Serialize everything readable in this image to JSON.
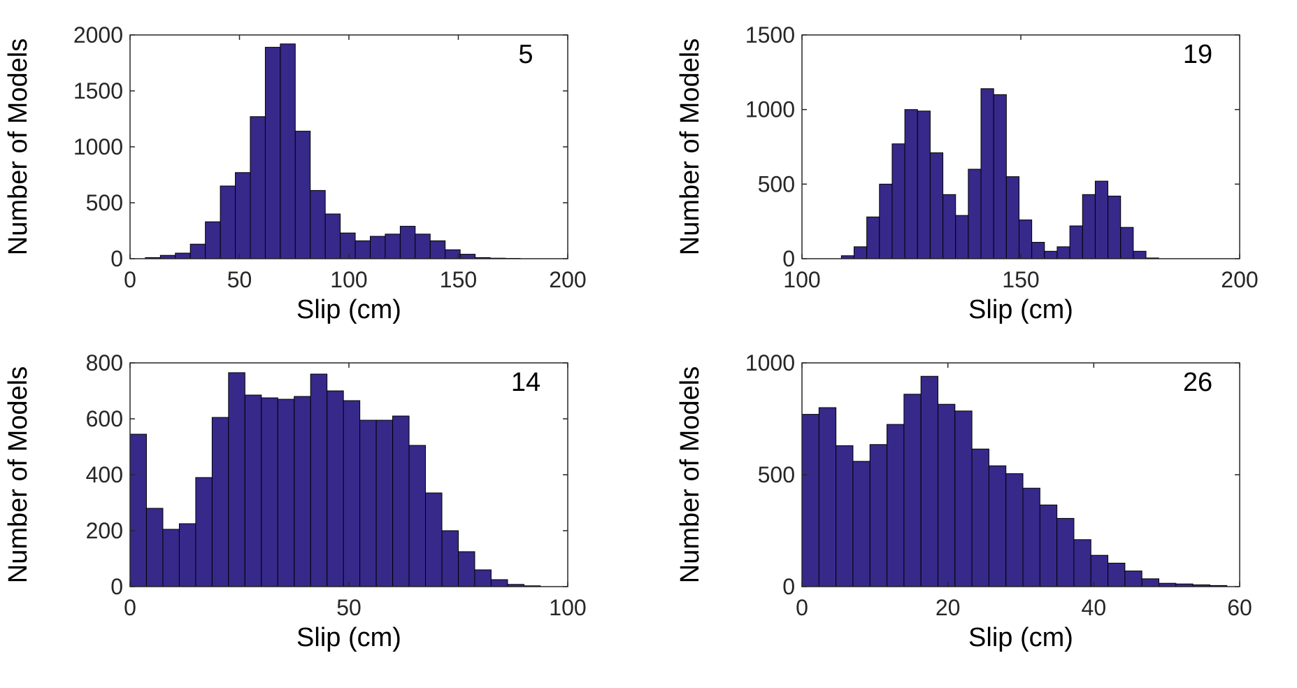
{
  "figure": {
    "bar_color": "#36298a",
    "bar_edge": "#000000"
  },
  "chart_data": [
    {
      "type": "bar",
      "panel_label": "5",
      "xlabel": "Slip (cm)",
      "ylabel": "Number of Models",
      "xlim": [
        0,
        200
      ],
      "ylim": [
        0,
        2000
      ],
      "xticks": [
        0,
        50,
        100,
        150,
        200
      ],
      "yticks": [
        0,
        500,
        1000,
        1500,
        2000
      ],
      "grid": false,
      "bin_start": 7,
      "bin_width": 6.85,
      "values": [
        10,
        30,
        50,
        130,
        330,
        650,
        770,
        1270,
        1890,
        1920,
        1140,
        610,
        400,
        230,
        160,
        200,
        220,
        290,
        220,
        160,
        80,
        40,
        10,
        5,
        3
      ]
    },
    {
      "type": "bar",
      "panel_label": "19",
      "xlabel": "Slip (cm)",
      "ylabel": "Number of Models",
      "xlim": [
        100,
        200
      ],
      "ylim": [
        0,
        1500
      ],
      "xticks": [
        100,
        150,
        200
      ],
      "yticks": [
        0,
        500,
        1000,
        1500
      ],
      "grid": false,
      "bin_start": 109,
      "bin_width": 2.9,
      "values": [
        20,
        80,
        280,
        500,
        770,
        1000,
        990,
        710,
        430,
        290,
        600,
        1140,
        1100,
        550,
        260,
        110,
        50,
        80,
        220,
        430,
        520,
        420,
        210,
        50,
        5
      ]
    },
    {
      "type": "bar",
      "panel_label": "14",
      "xlabel": "Slip (cm)",
      "ylabel": "Number of Models",
      "xlim": [
        0,
        100
      ],
      "ylim": [
        0,
        800
      ],
      "xticks": [
        0,
        50,
        100
      ],
      "yticks": [
        0,
        200,
        400,
        600,
        800
      ],
      "grid": false,
      "bin_start": 0,
      "bin_width": 3.75,
      "values": [
        545,
        280,
        205,
        225,
        390,
        605,
        765,
        685,
        675,
        670,
        680,
        760,
        700,
        665,
        595,
        595,
        610,
        505,
        335,
        200,
        125,
        60,
        25,
        8,
        3
      ]
    },
    {
      "type": "bar",
      "panel_label": "26",
      "xlabel": "Slip (cm)",
      "ylabel": "Number of Models",
      "xlim": [
        0,
        60
      ],
      "ylim": [
        0,
        1000
      ],
      "xticks": [
        0,
        20,
        40,
        60
      ],
      "yticks": [
        0,
        500,
        1000
      ],
      "grid": false,
      "bin_start": 0,
      "bin_width": 2.33,
      "values": [
        770,
        800,
        630,
        560,
        635,
        725,
        860,
        940,
        815,
        785,
        615,
        540,
        505,
        440,
        365,
        305,
        210,
        140,
        105,
        70,
        35,
        15,
        12,
        8,
        5
      ]
    }
  ]
}
